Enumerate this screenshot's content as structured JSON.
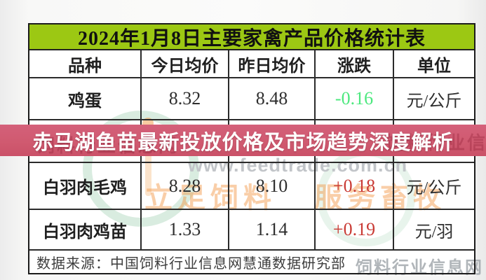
{
  "table": {
    "title": "2024年1月8日主要家禽产品价格统计表",
    "columns": [
      "品种",
      "今日均价",
      "昨日均价",
      "涨跌",
      "单位"
    ],
    "rows": [
      {
        "name": "鸡蛋",
        "today": "8.32",
        "yesterday": "8.48",
        "change": "-0.16",
        "direction": "down",
        "unit": "元/公斤"
      },
      {
        "name": "白羽肉毛鸡",
        "today": "8.28",
        "yesterday": "8.10",
        "change": "+0.18",
        "direction": "up",
        "unit": "元/公斤"
      },
      {
        "name": "白羽肉鸡苗",
        "today": "1.33",
        "yesterday": "1.14",
        "change": "+0.19",
        "direction": "up",
        "unit": "元/羽"
      }
    ],
    "source_note": "数据来源：中国饲料行业信息网慧通数据研究部"
  },
  "banner": {
    "headline": "赤马湖鱼苗最新投放价格及市场趋势深度解析"
  },
  "watermarks": {
    "url": "www.feedtrade.com.cn",
    "slogan_left": "立足饲料",
    "slogan_right": "服务畜牧",
    "site_name": "饲料行业信息网"
  },
  "colors": {
    "title_bar_green": "#9cc813",
    "banner_red": "#d05a70",
    "price_up_red": "#c93a34",
    "price_down_green": "#4ce87e"
  },
  "chart_data": {
    "type": "table",
    "title": "2024年1月8日主要家禽产品价格统计表",
    "columns": [
      "品种",
      "今日均价",
      "昨日均价",
      "涨跌",
      "单位"
    ],
    "rows": [
      [
        "鸡蛋",
        "8.32",
        "8.48",
        "-0.16",
        "元/公斤"
      ],
      [
        "白羽肉毛鸡",
        "8.28",
        "8.10",
        "+0.18",
        "元/公斤"
      ],
      [
        "白羽肉鸡苗",
        "1.33",
        "1.14",
        "+0.19",
        "元/羽"
      ]
    ]
  }
}
